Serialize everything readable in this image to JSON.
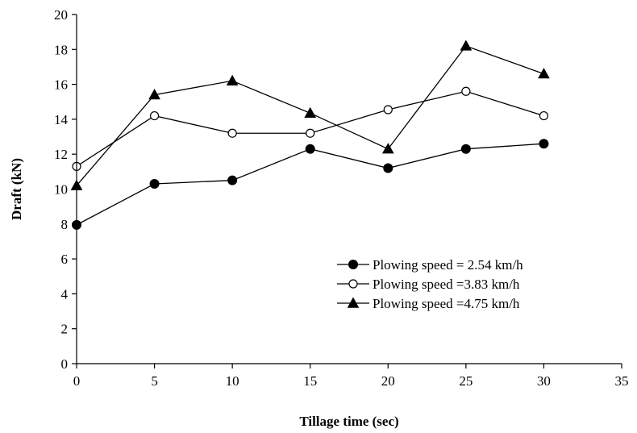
{
  "chart_data": {
    "type": "line",
    "title": "",
    "xlabel": "Tillage time (sec)",
    "ylabel": "Draft (kN)",
    "xlim": [
      0,
      35
    ],
    "ylim": [
      0,
      20
    ],
    "xticks": [
      0,
      5,
      10,
      15,
      20,
      25,
      30,
      35
    ],
    "yticks": [
      0,
      2,
      4,
      6,
      8,
      10,
      12,
      14,
      16,
      18,
      20
    ],
    "grid": false,
    "legend_position": "bottom-right",
    "x": [
      0,
      5,
      10,
      15,
      20,
      25,
      30
    ],
    "series": [
      {
        "name": "Plowing speed = 2.54 km/h",
        "marker": "filled-circle",
        "values": [
          7.95,
          10.3,
          10.5,
          12.3,
          11.2,
          12.3,
          12.6
        ]
      },
      {
        "name": "Plowing speed =3.83 km/h",
        "marker": "open-circle",
        "values": [
          11.3,
          14.2,
          13.2,
          13.2,
          14.55,
          15.6,
          14.2
        ]
      },
      {
        "name": "Plowing speed =4.75 km/h",
        "marker": "filled-triangle",
        "values": [
          10.2,
          15.4,
          16.2,
          14.35,
          12.3,
          18.2,
          16.6
        ]
      }
    ],
    "line_color": "#000000"
  }
}
